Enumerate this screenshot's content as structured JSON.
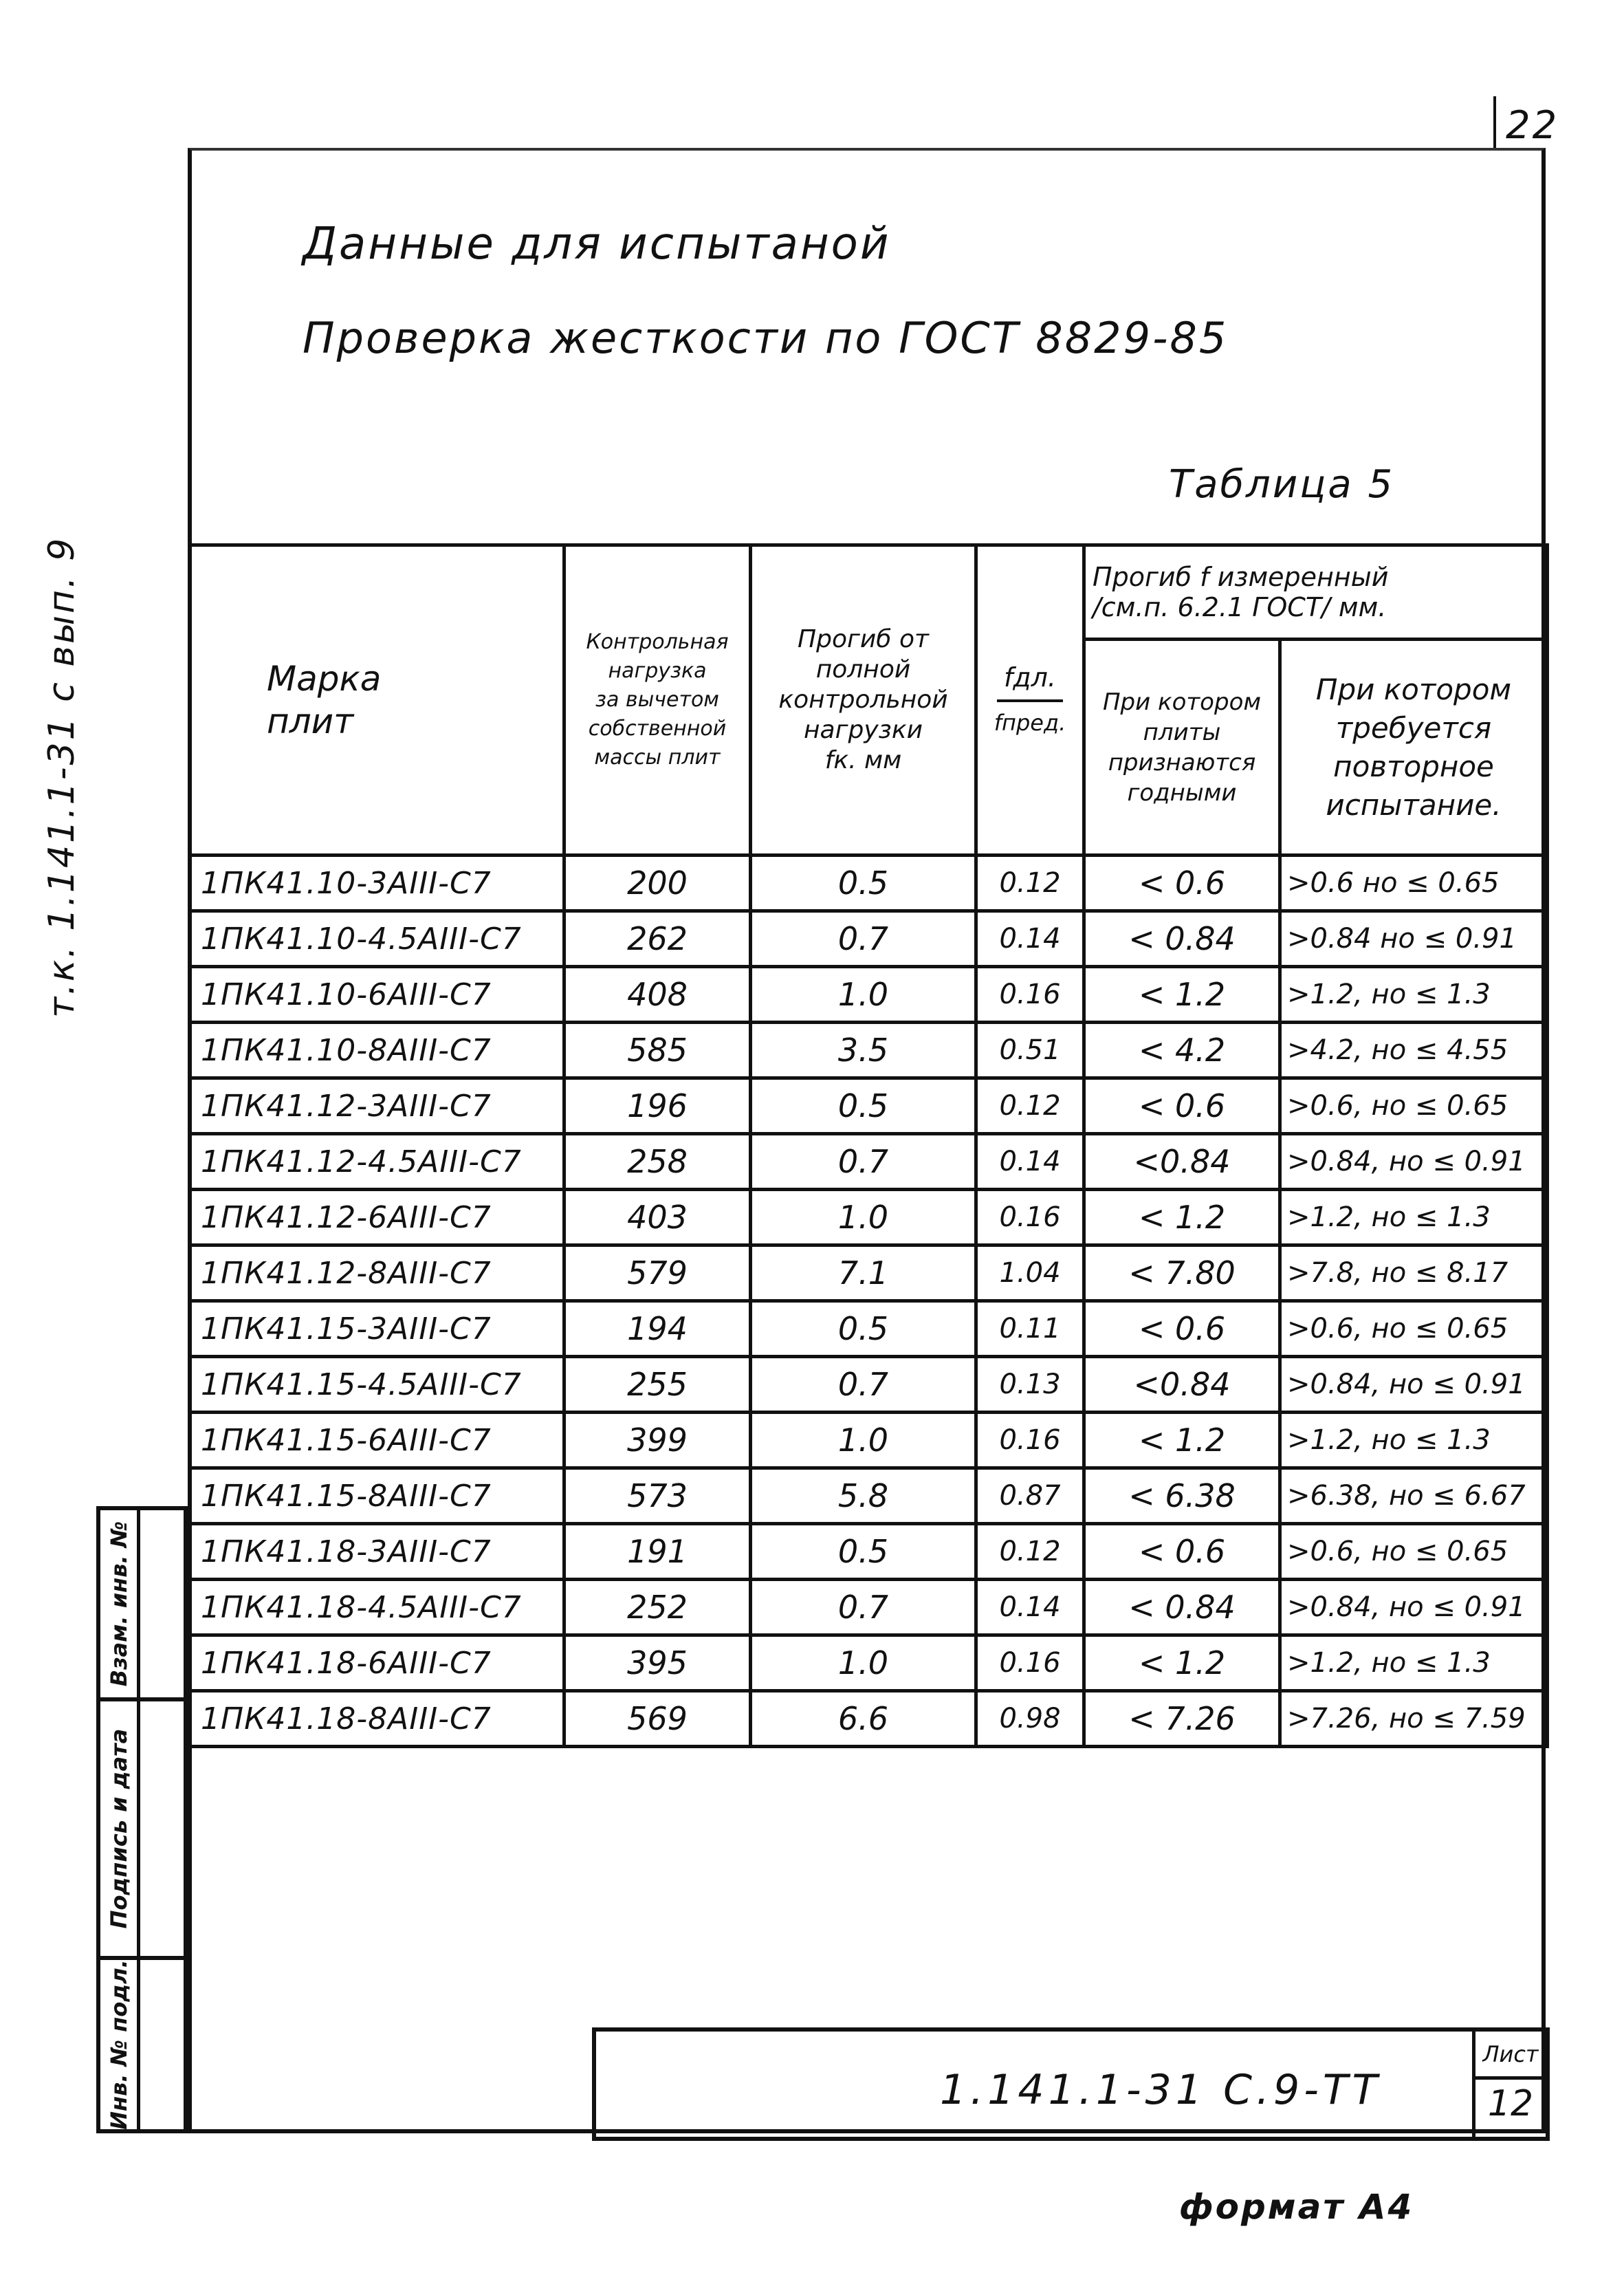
{
  "page_number": "22",
  "side_code": "т.к. 1.141.1-31 с вып. 9",
  "title_line1": "Данные для испытаной",
  "title_line2": "Проверка жесткости по ГОСТ 8829-85",
  "table_label": "Таблица 5",
  "table": {
    "headers": {
      "mark": "Марка плит",
      "load": [
        "Контрольная",
        "нагрузка",
        "за вычетом",
        "собственной",
        "массы плит"
      ],
      "deflection_full": [
        "Прогиб от",
        "полной",
        "контрольной",
        "нагрузки",
        "fк. мм"
      ],
      "ratio_top": "fдл.",
      "ratio_bottom": "fпред.",
      "measured_group": [
        "Прогиб f измеренный",
        "/см.п. 6.2.1 ГОСТ/ мм."
      ],
      "accepted": [
        "При котором",
        "плиты",
        "признаются",
        "годными"
      ],
      "retest": [
        "При котором",
        "требуется",
        "повторное",
        "испытание."
      ]
    },
    "rows": [
      {
        "mark": "1ПК41.10-3АIII-С7",
        "load": "200",
        "deflection": "0.5",
        "ratio": "0.12",
        "accepted": "< 0.6",
        "retest": ">0.6 но ≤ 0.65"
      },
      {
        "mark": "1ПК41.10-4.5АIII-С7",
        "load": "262",
        "deflection": "0.7",
        "ratio": "0.14",
        "accepted": "< 0.84",
        "retest": ">0.84 но ≤ 0.91"
      },
      {
        "mark": "1ПК41.10-6АIII-С7",
        "load": "408",
        "deflection": "1.0",
        "ratio": "0.16",
        "accepted": "< 1.2",
        "retest": ">1.2, но ≤ 1.3"
      },
      {
        "mark": "1ПК41.10-8АIII-С7",
        "load": "585",
        "deflection": "3.5",
        "ratio": "0.51",
        "accepted": "< 4.2",
        "retest": ">4.2, но ≤ 4.55"
      },
      {
        "mark": "1ПК41.12-3АIII-С7",
        "load": "196",
        "deflection": "0.5",
        "ratio": "0.12",
        "accepted": "< 0.6",
        "retest": ">0.6, но ≤ 0.65"
      },
      {
        "mark": "1ПК41.12-4.5АIII-С7",
        "load": "258",
        "deflection": "0.7",
        "ratio": "0.14",
        "accepted": "<0.84",
        "retest": ">0.84, но ≤ 0.91"
      },
      {
        "mark": "1ПК41.12-6АIII-С7",
        "load": "403",
        "deflection": "1.0",
        "ratio": "0.16",
        "accepted": "< 1.2",
        "retest": ">1.2, но ≤ 1.3"
      },
      {
        "mark": "1ПК41.12-8АIII-С7",
        "load": "579",
        "deflection": "7.1",
        "ratio": "1.04",
        "accepted": "< 7.80",
        "retest": ">7.8, но ≤ 8.17"
      },
      {
        "mark": "1ПК41.15-3АIII-С7",
        "load": "194",
        "deflection": "0.5",
        "ratio": "0.11",
        "accepted": "< 0.6",
        "retest": ">0.6, но ≤ 0.65"
      },
      {
        "mark": "1ПК41.15-4.5АIII-С7",
        "load": "255",
        "deflection": "0.7",
        "ratio": "0.13",
        "accepted": "<0.84",
        "retest": ">0.84, но ≤ 0.91"
      },
      {
        "mark": "1ПК41.15-6АIII-С7",
        "load": "399",
        "deflection": "1.0",
        "ratio": "0.16",
        "accepted": "< 1.2",
        "retest": ">1.2, но ≤ 1.3"
      },
      {
        "mark": "1ПК41.15-8АIII-С7",
        "load": "573",
        "deflection": "5.8",
        "ratio": "0.87",
        "accepted": "< 6.38",
        "retest": ">6.38, но ≤ 6.67"
      },
      {
        "mark": "1ПК41.18-3АIII-С7",
        "load": "191",
        "deflection": "0.5",
        "ratio": "0.12",
        "accepted": "< 0.6",
        "retest": ">0.6, но ≤ 0.65"
      },
      {
        "mark": "1ПК41.18-4.5АIII-С7",
        "load": "252",
        "deflection": "0.7",
        "ratio": "0.14",
        "accepted": "< 0.84",
        "retest": ">0.84, но ≤ 0.91"
      },
      {
        "mark": "1ПК41.18-6АIII-С7",
        "load": "395",
        "deflection": "1.0",
        "ratio": "0.16",
        "accepted": "< 1.2",
        "retest": ">1.2, но ≤ 1.3"
      },
      {
        "mark": "1ПК41.18-8АIII-С7",
        "load": "569",
        "deflection": "6.6",
        "ratio": "0.98",
        "accepted": "< 7.26",
        "retest": ">7.26, но ≤ 7.59"
      }
    ]
  },
  "stamp": {
    "replacement_inv": "Взам. инв. №",
    "signature_date": "Подпись и дата",
    "original_inv": "Инв. № подл."
  },
  "title_block": {
    "doc_code": "1.141.1-31 С.9-ТТ",
    "sheet_label": "Лист",
    "sheet_number": "12"
  },
  "format": "формат А4"
}
